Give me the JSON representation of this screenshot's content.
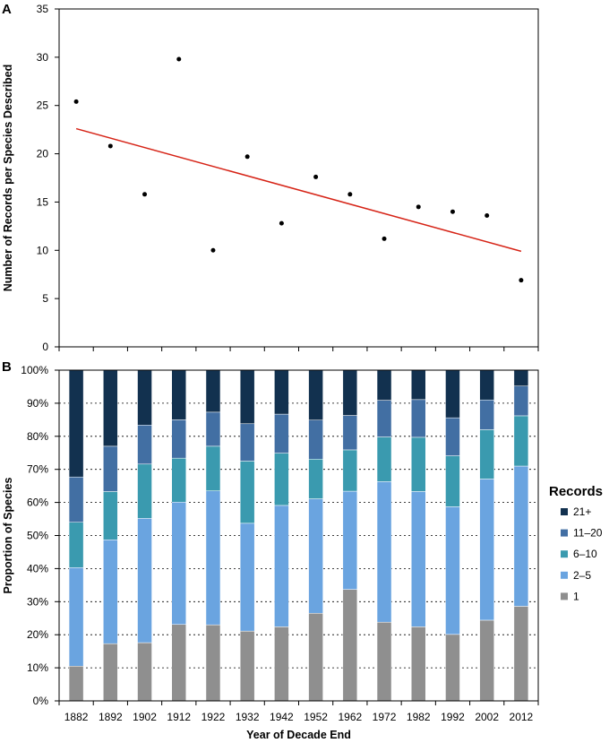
{
  "chart_data": [
    {
      "panel": "A",
      "type": "scatter",
      "ylabel": "Number of Records per Species Described",
      "ylim": [
        0,
        35
      ],
      "yticks": [
        0,
        5,
        10,
        15,
        20,
        25,
        30,
        35
      ],
      "categories": [
        "1882",
        "1892",
        "1902",
        "1912",
        "1922",
        "1932",
        "1942",
        "1952",
        "1962",
        "1972",
        "1982",
        "1992",
        "2002",
        "2012"
      ],
      "values": [
        25.4,
        20.8,
        15.8,
        29.8,
        10.0,
        19.7,
        12.8,
        17.6,
        15.8,
        11.2,
        14.5,
        14.0,
        13.6,
        6.9
      ],
      "trendline": {
        "start": 22.6,
        "end": 9.9,
        "color": "#d62316"
      },
      "point_color": "#000000"
    },
    {
      "panel": "B",
      "type": "bar",
      "stacked": true,
      "xlabel": "Year of Decade End",
      "ylabel": "Proportion of Species",
      "ylim": [
        0,
        100
      ],
      "yticks": [
        "0%",
        "10%",
        "20%",
        "30%",
        "40%",
        "50%",
        "60%",
        "70%",
        "80%",
        "90%",
        "100%"
      ],
      "grid": true,
      "categories": [
        "1882",
        "1892",
        "1902",
        "1912",
        "1922",
        "1932",
        "1942",
        "1952",
        "1962",
        "1972",
        "1982",
        "1992",
        "2002",
        "2012"
      ],
      "legend_title": "Records",
      "legend_position": "right",
      "series": [
        {
          "name": "1",
          "color": "#8f8f8f",
          "values": [
            10.5,
            17.3,
            17.6,
            23.1,
            23.0,
            21.1,
            22.4,
            26.5,
            33.7,
            23.8,
            22.4,
            20.1,
            24.4,
            28.6
          ]
        },
        {
          "name": "2–5",
          "color": "#6aa4e0",
          "values": [
            29.8,
            31.4,
            37.6,
            37.0,
            40.5,
            32.6,
            36.7,
            34.6,
            29.7,
            42.5,
            40.9,
            38.6,
            42.7,
            42.4
          ]
        },
        {
          "name": "6–10",
          "color": "#3a9aaf",
          "values": [
            13.7,
            14.6,
            16.4,
            13.3,
            13.5,
            18.8,
            15.8,
            12.0,
            12.5,
            13.5,
            16.4,
            15.4,
            14.9,
            15.2
          ]
        },
        {
          "name": "11–20",
          "color": "#426fa3",
          "values": [
            13.7,
            13.7,
            11.8,
            11.6,
            10.3,
            11.3,
            11.8,
            11.8,
            10.4,
            11.1,
            11.4,
            11.5,
            9.0,
            9.0
          ]
        },
        {
          "name": "21+",
          "color": "#12314f",
          "values": [
            32.3,
            23.0,
            16.6,
            15.0,
            12.7,
            16.2,
            13.3,
            15.1,
            13.7,
            9.1,
            8.9,
            14.4,
            9.0,
            4.8
          ]
        }
      ]
    }
  ]
}
